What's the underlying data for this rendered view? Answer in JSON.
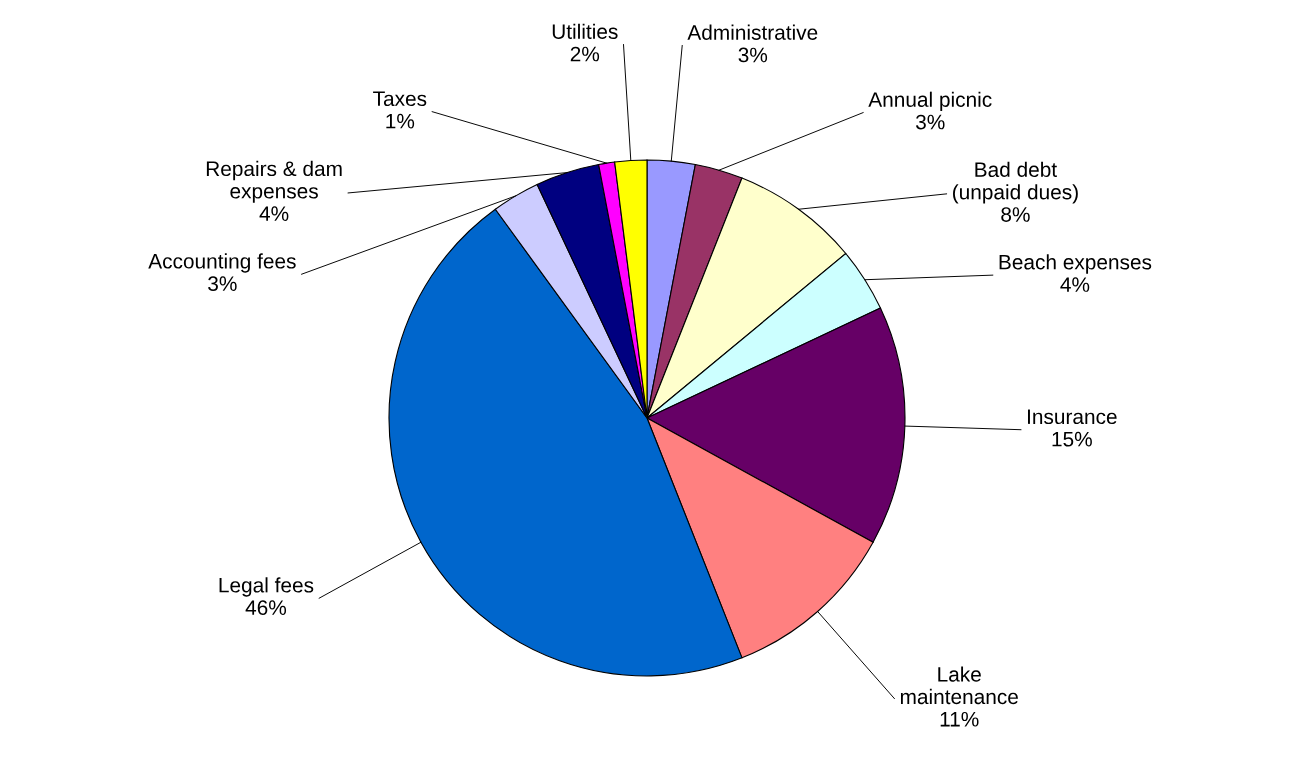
{
  "chart_data": {
    "type": "pie",
    "categories": [
      "Administrative",
      "Annual picnic",
      "Bad debt\n(unpaid dues)",
      "Beach expenses",
      "Insurance",
      "Lake\nmaintenance",
      "Legal fees",
      "Accounting fees",
      "Repairs & dam\nexpenses",
      "Taxes",
      "Utilities"
    ],
    "values": [
      3,
      3,
      8,
      4,
      15,
      11,
      46,
      3,
      4,
      1,
      2
    ],
    "value_labels": [
      "3%",
      "3%",
      "8%",
      "4%",
      "15%",
      "11%",
      "46%",
      "3%",
      "4%",
      "1%",
      "2%"
    ],
    "colors": [
      "#9999ff",
      "#993366",
      "#ffffcc",
      "#ccffff",
      "#660066",
      "#ff8080",
      "#0066cc",
      "#ccccff",
      "#000080",
      "#ff00ff",
      "#ffff00"
    ],
    "legend": false
  }
}
